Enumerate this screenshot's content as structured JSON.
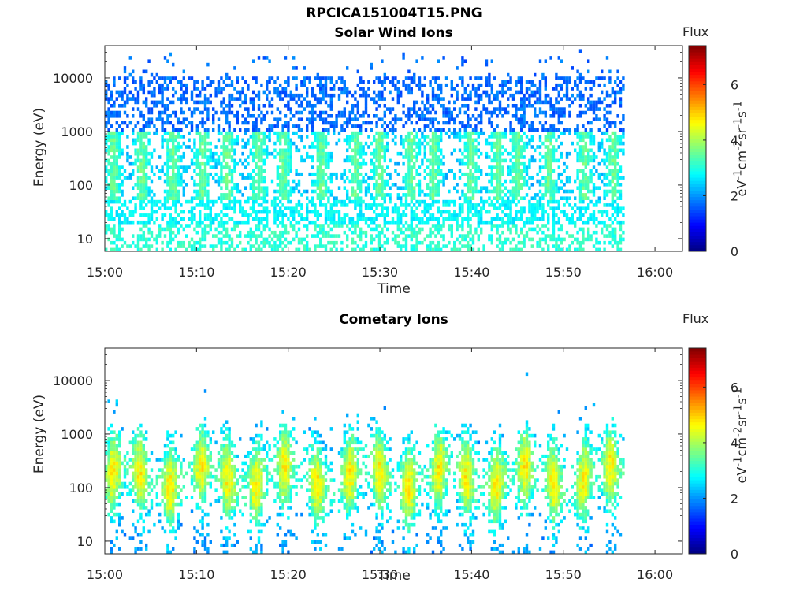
{
  "figure_title": "RPCICA151004T15.PNG",
  "colorbar": {
    "title": "Flux",
    "label_html": "eV<sup>-1</sup>cm<sup>-2</sup>sr<sup>-1</sup>s<sup>-1</sup>",
    "ticks": [
      "0",
      "2",
      "4",
      "6"
    ],
    "range": [
      0,
      7.4
    ],
    "colormap": "jet"
  },
  "chart_data": [
    {
      "type": "heatmap",
      "title": "Solar Wind Ions",
      "xlabel": "Time",
      "ylabel": "Energy (eV)",
      "x_ticks": [
        "15:00",
        "15:10",
        "15:20",
        "15:30",
        "15:40",
        "15:50",
        "16:00"
      ],
      "y_ticks": [
        "10",
        "100",
        "1000",
        "10000"
      ],
      "y_scale": "log",
      "ylim": [
        5.8,
        40000
      ],
      "xlim_minutes": [
        0,
        63
      ],
      "data_end_minute": 56.7,
      "pulse_minutes": [
        0.8,
        3.9,
        7.3,
        10.5,
        13.2,
        16.6,
        19.3,
        23.5,
        27.2,
        29.8,
        33.3,
        35.7,
        39.8,
        42.7,
        44.9,
        48.3,
        52.2,
        55.3
      ],
      "profile": "solar_wind",
      "colorbar_label": "eV-1cm-2sr-1s-1"
    },
    {
      "type": "heatmap",
      "title": "Cometary Ions",
      "xlabel": "Time",
      "ylabel": "Energy (eV)",
      "x_ticks": [
        "15:00",
        "15:10",
        "15:20",
        "15:30",
        "15:40",
        "15:50",
        "16:00"
      ],
      "y_ticks": [
        "10",
        "100",
        "1000",
        "10000"
      ],
      "y_scale": "log",
      "ylim": [
        5.8,
        40000
      ],
      "xlim_minutes": [
        0,
        63
      ],
      "data_end_minute": 56.7,
      "pulse_minutes": [
        0.8,
        3.7,
        7.0,
        10.4,
        13.3,
        16.4,
        19.5,
        23.0,
        26.6,
        29.8,
        33.0,
        36.3,
        39.3,
        42.6,
        45.7,
        48.8,
        52.1,
        55.0
      ],
      "profile": "cometary",
      "colorbar_label": "eV-1cm-2sr-1s-1"
    }
  ]
}
